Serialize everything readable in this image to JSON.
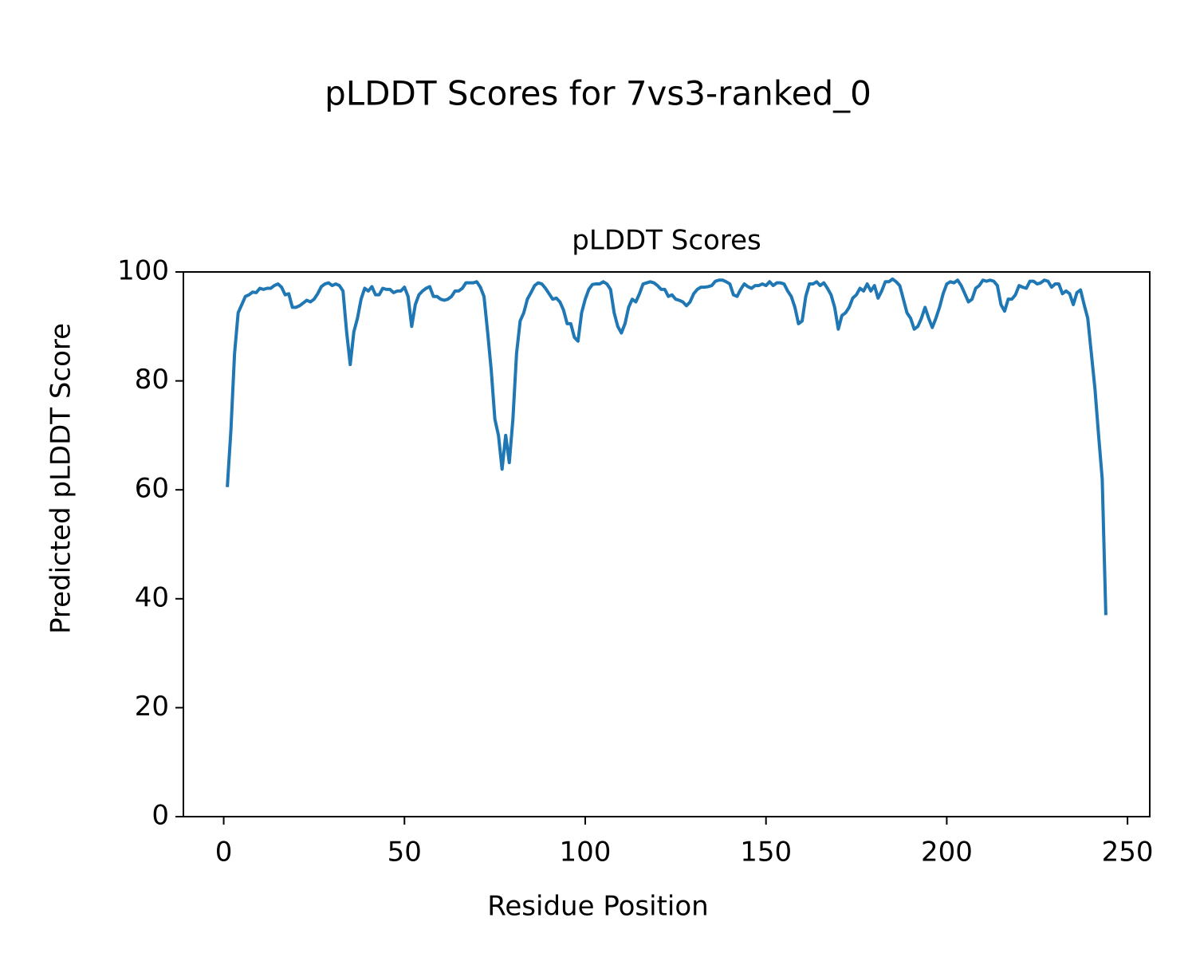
{
  "chart_data": {
    "type": "line",
    "suptitle": "pLDDT Scores for 7vs3-ranked_0",
    "title": "pLDDT Scores",
    "xlabel": "Residue Position",
    "ylabel": "Predicted pLDDT Score",
    "x": [
      1,
      2,
      3,
      4,
      5,
      6,
      7,
      8,
      9,
      10,
      11,
      12,
      13,
      14,
      15,
      16,
      17,
      18,
      19,
      20,
      21,
      22,
      23,
      24,
      25,
      26,
      27,
      28,
      29,
      30,
      31,
      32,
      33,
      34,
      35,
      36,
      37,
      38,
      39,
      40,
      41,
      42,
      43,
      44,
      45,
      46,
      47,
      48,
      49,
      50,
      51,
      52,
      53,
      54,
      55,
      56,
      57,
      58,
      59,
      60,
      61,
      62,
      63,
      64,
      65,
      66,
      67,
      68,
      69,
      70,
      71,
      72,
      73,
      74,
      75,
      76,
      77,
      78,
      79,
      80,
      81,
      82,
      83,
      84,
      85,
      86,
      87,
      88,
      89,
      90,
      91,
      92,
      93,
      94,
      95,
      96,
      97,
      98,
      99,
      100,
      101,
      102,
      103,
      104,
      105,
      106,
      107,
      108,
      109,
      110,
      111,
      112,
      113,
      114,
      115,
      116,
      117,
      118,
      119,
      120,
      121,
      122,
      123,
      124,
      125,
      126,
      127,
      128,
      129,
      130,
      131,
      132,
      133,
      134,
      135,
      136,
      137,
      138,
      139,
      140,
      141,
      142,
      143,
      144,
      145,
      146,
      147,
      148,
      149,
      150,
      151,
      152,
      153,
      154,
      155,
      156,
      157,
      158,
      159,
      160,
      161,
      162,
      163,
      164,
      165,
      166,
      167,
      168,
      169,
      170,
      171,
      172,
      173,
      174,
      175,
      176,
      177,
      178,
      179,
      180,
      181,
      182,
      183,
      184,
      185,
      186,
      187,
      188,
      189,
      190,
      191,
      192,
      193,
      194,
      195,
      196,
      197,
      198,
      199,
      200,
      201,
      202,
      203,
      204,
      205,
      206,
      207,
      208,
      209,
      210,
      211,
      212,
      213,
      214,
      215,
      216,
      217,
      218,
      219,
      220,
      221,
      222,
      223,
      224,
      225,
      226,
      227,
      228,
      229,
      230,
      231,
      232,
      233,
      234,
      235,
      236,
      237,
      238,
      239,
      240,
      241,
      242,
      243,
      244
    ],
    "series": [
      {
        "color": "#1f77b4",
        "values": [
          60.5,
          71,
          85,
          92.5,
          94,
          95.5,
          95.8,
          96.3,
          96.2,
          97,
          96.8,
          97,
          97,
          97.5,
          97.8,
          97.2,
          95.8,
          96,
          93.5,
          93.5,
          93.8,
          94.3,
          94.8,
          94.5,
          95,
          96,
          97.3,
          97.8,
          98,
          97.5,
          97.8,
          97.5,
          96.5,
          89,
          83,
          89,
          91.5,
          95,
          97,
          96.5,
          97.3,
          95.8,
          95.8,
          97,
          96.8,
          96.8,
          96.2,
          96.5,
          96.5,
          97.2,
          95.5,
          90,
          94,
          95.8,
          96.5,
          97,
          97.3,
          95.5,
          95.5,
          95,
          94.8,
          95,
          95.5,
          96.5,
          96.5,
          97,
          98,
          98,
          98,
          98.2,
          97.2,
          95.5,
          89,
          82,
          73,
          70,
          63.8,
          70,
          65,
          73,
          85,
          91,
          92.5,
          95,
          96.2,
          97.5,
          98,
          97.8,
          97,
          96,
          95,
          95.2,
          94.5,
          93,
          90.5,
          90.5,
          88,
          87.3,
          92.5,
          95,
          96.8,
          97.7,
          97.8,
          97.8,
          98.2,
          97.8,
          96.8,
          92.5,
          90,
          88.8,
          90.5,
          93.5,
          95,
          94.5,
          96,
          97.8,
          98,
          98.2,
          98,
          97.5,
          96.8,
          96.8,
          95.5,
          95.8,
          95,
          94.8,
          94.5,
          93.8,
          94.5,
          96,
          96.8,
          97.2,
          97.2,
          97.3,
          97.5,
          98.3,
          98.5,
          98.5,
          98.2,
          97.8,
          95.8,
          95.5,
          96.8,
          97.8,
          97.3,
          97,
          97.5,
          97.5,
          97.8,
          97.5,
          98.2,
          97.5,
          98,
          98,
          97.8,
          96.5,
          95.5,
          93.5,
          90.5,
          91,
          95.5,
          97.8,
          97.8,
          98.2,
          97.5,
          98,
          97,
          95.8,
          93.5,
          89.5,
          92,
          92.5,
          93.5,
          95.2,
          95.8,
          97,
          96.5,
          97.8,
          96.5,
          97.5,
          95.2,
          96.5,
          98.2,
          98.2,
          98.7,
          98.2,
          97.5,
          95,
          92.5,
          91.5,
          89.5,
          90,
          91.5,
          93.5,
          91.5,
          89.8,
          91.5,
          93.5,
          96,
          97.8,
          98.2,
          98,
          98.5,
          97.5,
          96,
          94.5,
          95,
          97,
          97.5,
          98.5,
          98.3,
          98.5,
          98.3,
          97.5,
          94,
          92.8,
          95,
          95,
          95.8,
          97.5,
          97.2,
          97,
          98.3,
          98.3,
          97.8,
          98,
          98.5,
          98.3,
          97.2,
          97.8,
          97.8,
          96,
          96.5,
          96,
          94,
          96.2,
          96.7,
          94,
          91.5,
          85,
          78.5,
          70,
          62,
          37
        ]
      }
    ],
    "xlim": [
      -11.15,
      256.15
    ],
    "xticks": [
      0,
      50,
      100,
      150,
      200,
      250
    ],
    "ylim": [
      0,
      100
    ],
    "yticks": [
      0,
      20,
      40,
      60,
      80,
      100
    ]
  }
}
